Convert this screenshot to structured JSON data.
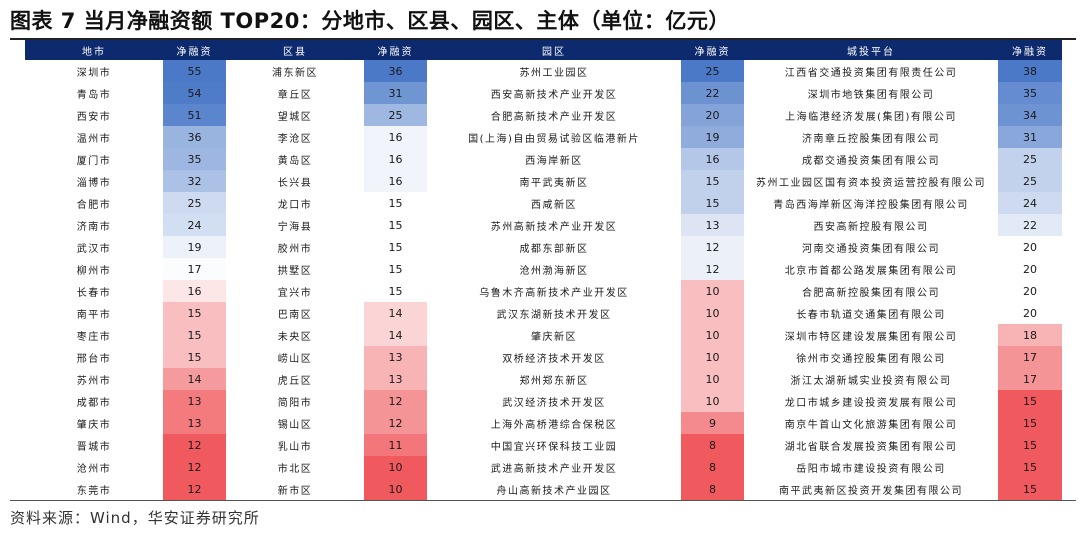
{
  "title": "图表 7 当月净融资额 TOP20：分地市、区县、园区、主体（单位：亿元）",
  "source": "资料来源：Wind，华安证券研究所",
  "headers": [
    "地市",
    "净融资",
    "区县",
    "净融资",
    "园区",
    "净融资",
    "城投平台",
    "净融资"
  ],
  "colors": {
    "header_bg": "#0d2a6e",
    "high_blue": "#4b79c8",
    "low_red": "#f05a5e",
    "neutral": "#ffffff"
  },
  "rows": [
    [
      "深圳市",
      "55",
      "浦东新区",
      "36",
      "苏州工业园区",
      "25",
      "江西省交通投资集团有限责任公司",
      "38"
    ],
    [
      "青岛市",
      "54",
      "章丘区",
      "31",
      "西安高新技术产业开发区",
      "22",
      "深圳市地铁集团有限公司",
      "35"
    ],
    [
      "西安市",
      "51",
      "望城区",
      "25",
      "合肥高新技术产业开发区",
      "20",
      "上海临港经济发展(集团)有限公司",
      "34"
    ],
    [
      "温州市",
      "36",
      "李沧区",
      "16",
      "国(上海)自由贸易试验区临港新片",
      "19",
      "济南章丘控股集团有限公司",
      "31"
    ],
    [
      "厦门市",
      "35",
      "黄岛区",
      "16",
      "西海岸新区",
      "16",
      "成都交通投资集团有限公司",
      "25"
    ],
    [
      "淄博市",
      "32",
      "长兴县",
      "16",
      "南平武夷新区",
      "15",
      "苏州工业园区国有资本投资运营控股有限公司",
      "25"
    ],
    [
      "合肥市",
      "25",
      "龙口市",
      "15",
      "西咸新区",
      "15",
      "青岛西海岸新区海洋控股集团有限公司",
      "24"
    ],
    [
      "济南市",
      "24",
      "宁海县",
      "15",
      "苏州高新技术产业开发区",
      "13",
      "西安高新控股有限公司",
      "22"
    ],
    [
      "武汉市",
      "19",
      "胶州市",
      "15",
      "成都东部新区",
      "12",
      "河南交通投资集团有限公司",
      "20"
    ],
    [
      "柳州市",
      "17",
      "拱墅区",
      "15",
      "沧州渤海新区",
      "12",
      "北京市首都公路发展集团有限公司",
      "20"
    ],
    [
      "长春市",
      "16",
      "宜兴市",
      "15",
      "乌鲁木齐高新技术产业开发区",
      "10",
      "合肥高新控股集团有限公司",
      "20"
    ],
    [
      "南平市",
      "15",
      "巴南区",
      "14",
      "武汉东湖新技术开发区",
      "10",
      "长春市轨道交通集团有限公司",
      "20"
    ],
    [
      "枣庄市",
      "15",
      "未央区",
      "14",
      "肇庆新区",
      "10",
      "深圳市特区建设发展集团有限公司",
      "18"
    ],
    [
      "邢台市",
      "15",
      "崂山区",
      "13",
      "双桥经济技术开发区",
      "10",
      "徐州市交通控股集团有限公司",
      "17"
    ],
    [
      "苏州市",
      "14",
      "虎丘区",
      "13",
      "郑州郑东新区",
      "10",
      "浙江太湖新城实业投资有限公司",
      "17"
    ],
    [
      "成都市",
      "13",
      "简阳市",
      "12",
      "武汉经济技术开发区",
      "10",
      "龙口市城乡建设投资发展有限公司",
      "15"
    ],
    [
      "肇庆市",
      "13",
      "锡山区",
      "12",
      "上海外高桥港综合保税区",
      "9",
      "南京牛首山文化旅游集团有限公司",
      "15"
    ],
    [
      "晋城市",
      "12",
      "乳山市",
      "11",
      "中国宜兴环保科技工业园",
      "8",
      "湖北省联合发展投资集团有限公司",
      "15"
    ],
    [
      "沧州市",
      "12",
      "市北区",
      "10",
      "武进高新技术产业开发区",
      "8",
      "岳阳市城市建设投资有限公司",
      "15"
    ],
    [
      "东莞市",
      "12",
      "新市区",
      "10",
      "舟山高新技术产业园区",
      "8",
      "南平武夷新区投资开发集团有限公司",
      "15"
    ]
  ]
}
